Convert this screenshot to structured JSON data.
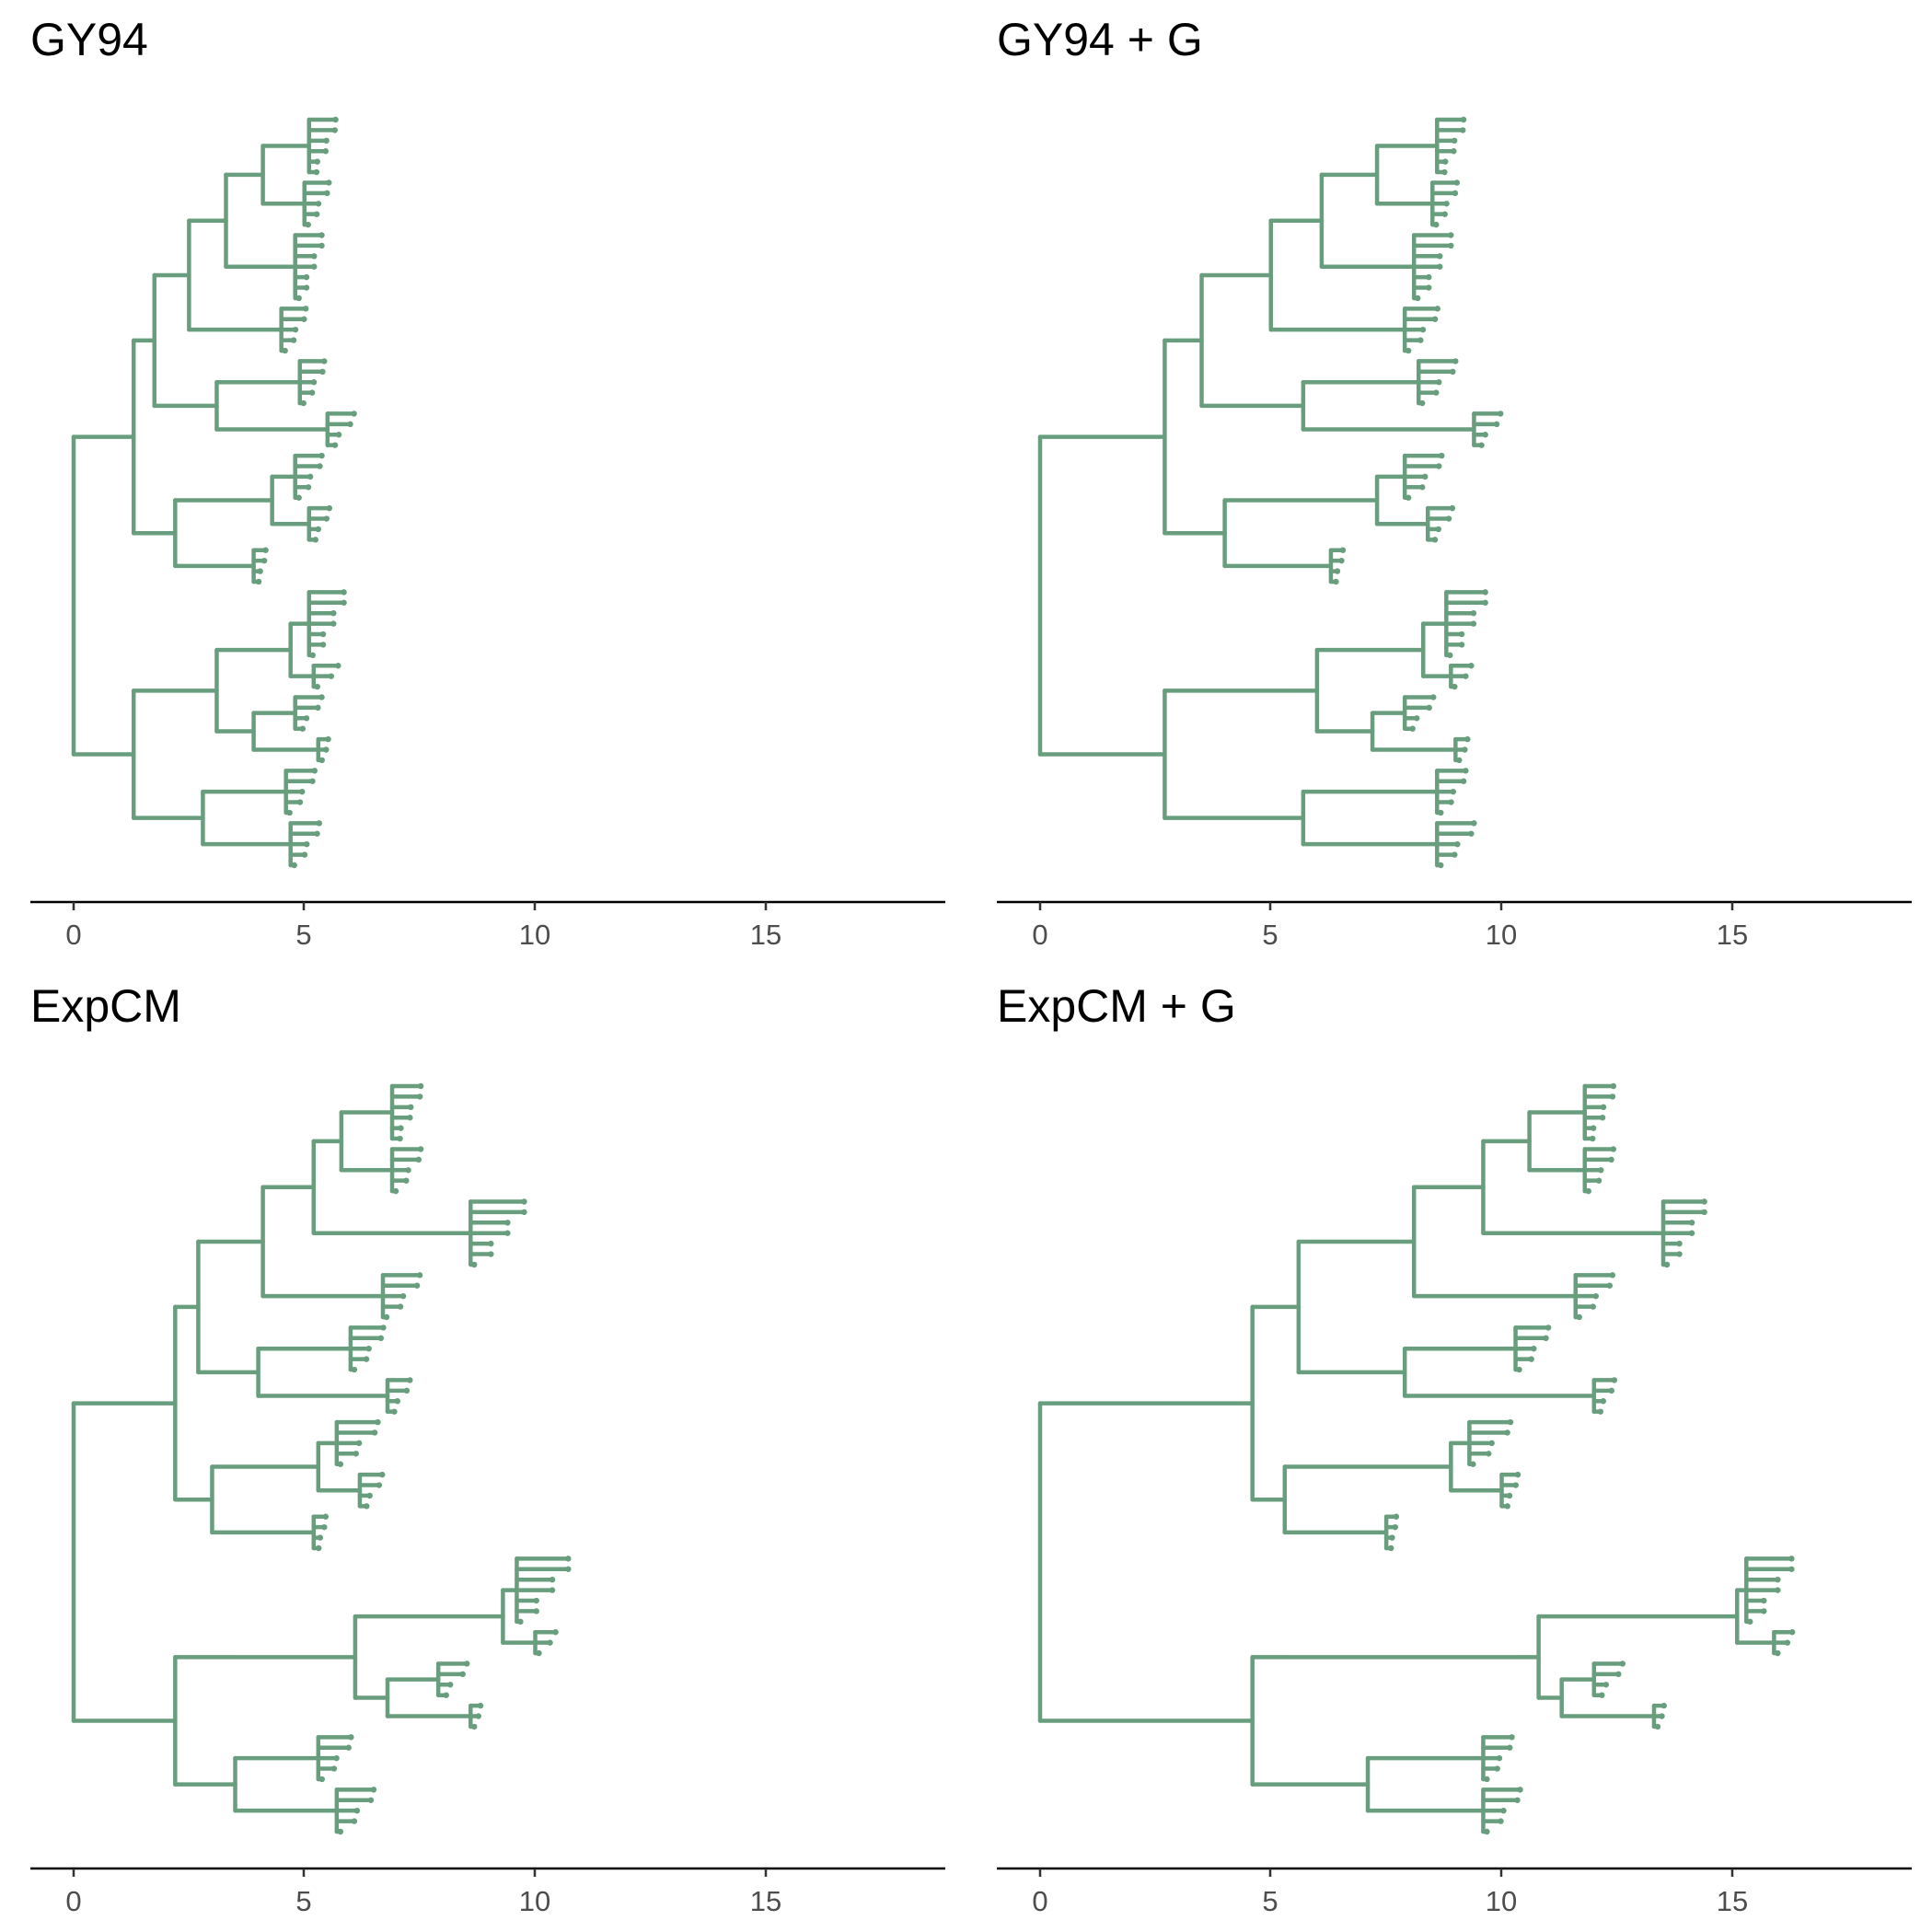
{
  "chart_data": [
    {
      "type": "tree",
      "title": "GY94",
      "xlim": [
        -0.9,
        19
      ],
      "x_ticks": [
        0,
        5,
        10,
        15
      ],
      "tree": {
        "h": 0,
        "c": [
          {
            "h": 1.3,
            "c": [
              {
                "h": 1.75,
                "c": [
                  {
                    "h": 2.5,
                    "c": [
                      {
                        "h": 3.3,
                        "c": [
                          {
                            "h": 4.1,
                            "c": [
                              {
                                "h": 5.1,
                                "t": 6,
                                "s": 0.55
                              },
                              {
                                "h": 5.0,
                                "t": 5,
                                "s": 0.5
                              }
                            ]
                          },
                          {
                            "h": 4.8,
                            "t": 7,
                            "s": 0.55
                          }
                        ]
                      },
                      {
                        "h": 4.5,
                        "t": 5,
                        "s": 0.5
                      }
                    ]
                  },
                  {
                    "h": 3.1,
                    "c": [
                      {
                        "h": 4.9,
                        "t": 5,
                        "s": 0.5
                      },
                      {
                        "h": 5.5,
                        "t": 4,
                        "s": 0.55
                      }
                    ]
                  }
                ]
              },
              {
                "h": 2.2,
                "c": [
                  {
                    "h": 4.3,
                    "c": [
                      {
                        "h": 4.8,
                        "t": 5,
                        "s": 0.55
                      },
                      {
                        "h": 5.1,
                        "t": 4,
                        "s": 0.4
                      }
                    ]
                  },
                  {
                    "h": 3.9,
                    "t": 4,
                    "s": 0.2
                  }
                ]
              }
            ]
          },
          {
            "h": 1.3,
            "c": [
              {
                "h": 3.1,
                "c": [
                  {
                    "h": 4.7,
                    "c": [
                      {
                        "h": 5.1,
                        "t": 7,
                        "s": 0.75
                      },
                      {
                        "h": 5.2,
                        "t": 3,
                        "s": 0.5
                      }
                    ]
                  },
                  {
                    "h": 3.9,
                    "c": [
                      {
                        "h": 4.8,
                        "t": 4,
                        "s": 0.55
                      },
                      {
                        "h": 5.3,
                        "t": 3,
                        "s": 0.15
                      }
                    ]
                  }
                ]
              },
              {
                "h": 2.8,
                "c": [
                  {
                    "h": 4.6,
                    "t": 5,
                    "s": 0.6
                  },
                  {
                    "h": 4.7,
                    "t": 5,
                    "s": 0.6
                  }
                ]
              }
            ]
          }
        ]
      }
    },
    {
      "type": "tree",
      "title": "GY94 + G",
      "xlim": [
        -0.9,
        19
      ],
      "x_ticks": [
        0,
        5,
        10,
        15
      ],
      "tree": {
        "h": 0,
        "c": [
          {
            "h": 2.7,
            "c": [
              {
                "h": 3.5,
                "c": [
                  {
                    "h": 5.0,
                    "c": [
                      {
                        "h": 6.1,
                        "c": [
                          {
                            "h": 7.3,
                            "c": [
                              {
                                "h": 8.6,
                                "t": 6,
                                "s": 0.55
                              },
                              {
                                "h": 8.5,
                                "t": 5,
                                "s": 0.5
                              }
                            ]
                          },
                          {
                            "h": 8.1,
                            "t": 7,
                            "s": 0.8
                          }
                        ]
                      },
                      {
                        "h": 7.9,
                        "t": 5,
                        "s": 0.7
                      }
                    ]
                  },
                  {
                    "h": 5.7,
                    "c": [
                      {
                        "h": 8.2,
                        "t": 5,
                        "s": 0.8
                      },
                      {
                        "h": 9.4,
                        "t": 4,
                        "s": 0.55
                      }
                    ]
                  }
                ]
              },
              {
                "h": 4.0,
                "c": [
                  {
                    "h": 7.3,
                    "c": [
                      {
                        "h": 7.9,
                        "t": 5,
                        "s": 0.8
                      },
                      {
                        "h": 8.4,
                        "t": 4,
                        "s": 0.5
                      }
                    ]
                  },
                  {
                    "h": 6.3,
                    "t": 4,
                    "s": 0.2
                  }
                ]
              }
            ]
          },
          {
            "h": 2.7,
            "c": [
              {
                "h": 6.0,
                "c": [
                  {
                    "h": 8.3,
                    "c": [
                      {
                        "h": 8.8,
                        "t": 7,
                        "s": 0.85
                      },
                      {
                        "h": 8.9,
                        "t": 3,
                        "s": 0.4
                      }
                    ]
                  },
                  {
                    "h": 7.2,
                    "c": [
                      {
                        "h": 7.9,
                        "t": 4,
                        "s": 0.6
                      },
                      {
                        "h": 9.0,
                        "t": 3,
                        "s": 0.2
                      }
                    ]
                  }
                ]
              },
              {
                "h": 5.7,
                "c": [
                  {
                    "h": 8.6,
                    "t": 5,
                    "s": 0.6
                  },
                  {
                    "h": 8.6,
                    "t": 5,
                    "s": 0.8
                  }
                ]
              }
            ]
          }
        ]
      }
    },
    {
      "type": "tree",
      "title": "ExpCM",
      "xlim": [
        -0.9,
        19
      ],
      "x_ticks": [
        0,
        5,
        10,
        15
      ],
      "tree": {
        "h": 0,
        "c": [
          {
            "h": 2.2,
            "c": [
              {
                "h": 2.7,
                "c": [
                  {
                    "h": 4.1,
                    "c": [
                      {
                        "h": 5.2,
                        "c": [
                          {
                            "h": 5.8,
                            "c": [
                              {
                                "h": 6.9,
                                "t": 6,
                                "s": 0.6
                              },
                              {
                                "h": 6.9,
                                "t": 5,
                                "s": 0.6
                              }
                            ]
                          },
                          {
                            "h": 8.6,
                            "t": 7,
                            "s": 1.2
                          }
                        ]
                      },
                      {
                        "h": 6.7,
                        "t": 5,
                        "s": 0.8
                      }
                    ]
                  },
                  {
                    "h": 4.0,
                    "c": [
                      {
                        "h": 6.0,
                        "t": 5,
                        "s": 0.7
                      },
                      {
                        "h": 6.8,
                        "t": 4,
                        "s": 0.45
                      }
                    ]
                  }
                ]
              },
              {
                "h": 3.0,
                "c": [
                  {
                    "h": 5.3,
                    "c": [
                      {
                        "h": 5.7,
                        "t": 5,
                        "s": 0.9
                      },
                      {
                        "h": 6.2,
                        "t": 4,
                        "s": 0.45
                      }
                    ]
                  },
                  {
                    "h": 5.2,
                    "t": 4,
                    "s": 0.2
                  }
                ]
              }
            ]
          },
          {
            "h": 2.2,
            "c": [
              {
                "h": 6.1,
                "c": [
                  {
                    "h": 9.3,
                    "c": [
                      {
                        "h": 9.6,
                        "t": 7,
                        "s": 1.15
                      },
                      {
                        "h": 10.0,
                        "t": 3,
                        "s": 0.4
                      }
                    ]
                  },
                  {
                    "h": 6.8,
                    "c": [
                      {
                        "h": 7.9,
                        "t": 4,
                        "s": 0.6
                      },
                      {
                        "h": 8.6,
                        "t": 3,
                        "s": 0.15
                      }
                    ]
                  }
                ]
              },
              {
                "h": 3.5,
                "c": [
                  {
                    "h": 5.3,
                    "t": 5,
                    "s": 0.7
                  },
                  {
                    "h": 5.7,
                    "t": 5,
                    "s": 0.8
                  }
                ]
              }
            ]
          }
        ]
      }
    },
    {
      "type": "tree",
      "title": "ExpCM + G",
      "xlim": [
        -0.9,
        19
      ],
      "x_ticks": [
        0,
        5,
        10,
        15
      ],
      "tree": {
        "h": 0,
        "c": [
          {
            "h": 4.6,
            "c": [
              {
                "h": 5.6,
                "c": [
                  {
                    "h": 8.1,
                    "c": [
                      {
                        "h": 9.6,
                        "c": [
                          {
                            "h": 10.6,
                            "c": [
                              {
                                "h": 11.8,
                                "t": 6,
                                "s": 0.6
                              },
                              {
                                "h": 11.8,
                                "t": 5,
                                "s": 0.6
                              }
                            ]
                          },
                          {
                            "h": 13.5,
                            "t": 7,
                            "s": 0.9
                          }
                        ]
                      },
                      {
                        "h": 11.6,
                        "t": 5,
                        "s": 0.8
                      }
                    ]
                  },
                  {
                    "h": 7.9,
                    "c": [
                      {
                        "h": 10.3,
                        "t": 5,
                        "s": 0.7
                      },
                      {
                        "h": 12.0,
                        "t": 4,
                        "s": 0.4
                      }
                    ]
                  }
                ]
              },
              {
                "h": 5.3,
                "c": [
                  {
                    "h": 8.9,
                    "c": [
                      {
                        "h": 9.3,
                        "t": 5,
                        "s": 0.9
                      },
                      {
                        "h": 10.0,
                        "t": 4,
                        "s": 0.3
                      }
                    ]
                  },
                  {
                    "h": 7.5,
                    "t": 4,
                    "s": 0.15
                  }
                ]
              }
            ]
          },
          {
            "h": 4.6,
            "c": [
              {
                "h": 10.8,
                "c": [
                  {
                    "h": 15.1,
                    "c": [
                      {
                        "h": 15.3,
                        "t": 7,
                        "s": 1.0
                      },
                      {
                        "h": 15.9,
                        "t": 3,
                        "s": 0.35
                      }
                    ]
                  },
                  {
                    "h": 11.3,
                    "c": [
                      {
                        "h": 12.0,
                        "t": 4,
                        "s": 0.6
                      },
                      {
                        "h": 13.3,
                        "t": 3,
                        "s": 0.15
                      }
                    ]
                  }
                ]
              },
              {
                "h": 7.1,
                "c": [
                  {
                    "h": 9.6,
                    "t": 5,
                    "s": 0.6
                  },
                  {
                    "h": 9.6,
                    "t": 5,
                    "s": 0.8
                  }
                ]
              }
            ]
          }
        ]
      }
    }
  ],
  "colors": {
    "branch": "#689e7e",
    "axis": "#000000",
    "tick_text": "#4d4d4d"
  }
}
